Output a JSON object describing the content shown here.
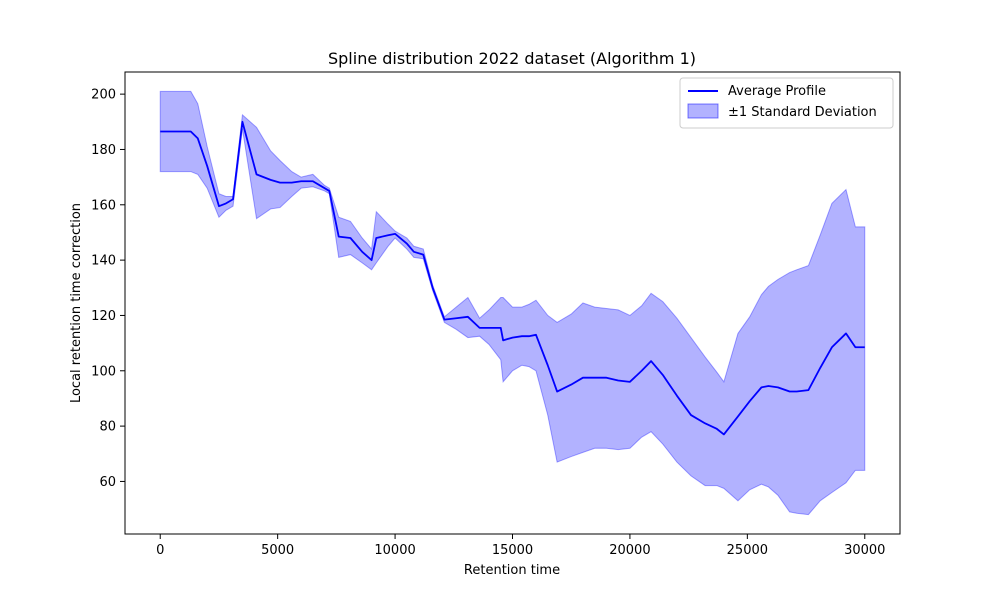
{
  "chart_data": {
    "type": "line",
    "title": "Spline distribution 2022 dataset (Algorithm 1)",
    "xlabel": "Retention time",
    "ylabel": "Local retention time correction",
    "xlim": [
      -1500,
      31500
    ],
    "ylim": [
      41,
      208
    ],
    "xticks": [
      0,
      5000,
      10000,
      15000,
      20000,
      25000,
      30000
    ],
    "yticks": [
      60,
      80,
      100,
      120,
      140,
      160,
      180,
      200
    ],
    "grid": false,
    "legend_position": "top-right",
    "colors": {
      "line": "#0000ff",
      "band_fill": "#0000ff",
      "band_opacity": 0.3
    },
    "series": [
      {
        "name": "Average Profile",
        "x": [
          0,
          1300,
          1600,
          2000,
          2500,
          2800,
          3100,
          3500,
          4100,
          4700,
          5100,
          5600,
          6000,
          6500,
          7000,
          7200,
          7600,
          8100,
          8600,
          9000,
          9200,
          9700,
          10000,
          10500,
          10800,
          11200,
          11600,
          12100,
          12600,
          13100,
          13600,
          14000,
          14500,
          14600,
          15000,
          15400,
          15700,
          16000,
          16500,
          16900,
          17500,
          18000,
          18500,
          19000,
          19500,
          20000,
          20500,
          20900,
          21400,
          22000,
          22600,
          23200,
          23700,
          24000,
          24600,
          25100,
          25600,
          25900,
          26300,
          26800,
          27100,
          27600,
          28100,
          28600,
          29200,
          29600,
          30000
        ],
        "y": [
          186.5,
          186.5,
          184,
          174,
          159.5,
          160.5,
          162,
          190,
          171,
          169,
          168,
          168,
          168.5,
          168.5,
          166,
          165,
          148.5,
          148,
          143,
          140,
          148,
          149,
          149.5,
          146,
          143,
          142,
          130,
          118.5,
          119,
          119.5,
          115.5,
          115.5,
          115.5,
          111,
          112,
          112.5,
          112.5,
          113,
          102,
          92.5,
          95,
          97.5,
          97.5,
          97.5,
          96.5,
          96,
          100,
          103.5,
          98.5,
          91,
          84,
          81,
          79,
          77,
          83.5,
          89,
          94,
          94.5,
          94,
          92.5,
          92.5,
          93,
          101,
          108.5,
          113.5,
          108.5,
          108.5
        ]
      },
      {
        "name": "±1 Standard Deviation",
        "x": [
          0,
          1300,
          1600,
          2000,
          2500,
          2800,
          3100,
          3500,
          4100,
          4700,
          5100,
          5600,
          6000,
          6500,
          7000,
          7200,
          7600,
          8100,
          8600,
          9000,
          9200,
          9700,
          10000,
          10500,
          10800,
          11200,
          11600,
          12100,
          12600,
          13100,
          13600,
          14000,
          14500,
          14600,
          15000,
          15400,
          15700,
          16000,
          16500,
          16900,
          17500,
          18000,
          18500,
          19000,
          19500,
          20000,
          20500,
          20900,
          21400,
          22000,
          22600,
          23200,
          23700,
          24000,
          24600,
          25100,
          25600,
          25900,
          26300,
          26800,
          27100,
          27600,
          28100,
          28600,
          29200,
          29600,
          30000
        ],
        "upper": [
          201,
          201,
          196.5,
          181,
          164,
          163,
          163,
          192.5,
          188,
          179.5,
          176,
          172,
          170,
          171,
          167,
          166,
          155.5,
          154,
          148,
          144,
          157.5,
          153,
          150.5,
          148,
          145,
          144,
          131,
          119.5,
          123,
          126.5,
          119,
          122,
          126.5,
          126.5,
          123,
          123,
          124,
          125.5,
          120,
          117.5,
          120.5,
          124.5,
          123,
          122.5,
          122,
          120,
          123.5,
          128,
          125,
          119,
          112,
          105,
          99.5,
          96,
          113.5,
          119.5,
          127.5,
          130.5,
          133,
          135.5,
          136.5,
          138,
          149,
          160.5,
          165.5,
          152,
          152
        ],
        "lower": [
          172,
          172,
          171,
          166,
          155.5,
          158,
          159.5,
          187.5,
          155,
          158.5,
          159,
          163,
          166,
          166.5,
          165,
          164,
          141,
          142,
          139,
          136.5,
          139,
          145,
          148,
          144,
          141,
          140.5,
          129,
          117.5,
          115,
          112,
          112.5,
          109.5,
          104,
          96,
          100,
          102,
          101.5,
          100,
          84,
          67,
          69,
          70.5,
          72,
          72,
          71.5,
          72,
          76,
          78,
          73.5,
          67,
          62,
          58.5,
          58.5,
          57.5,
          53,
          57,
          59,
          58,
          55,
          49,
          48.5,
          48,
          53,
          56,
          59.5,
          64,
          64
        ]
      }
    ]
  }
}
